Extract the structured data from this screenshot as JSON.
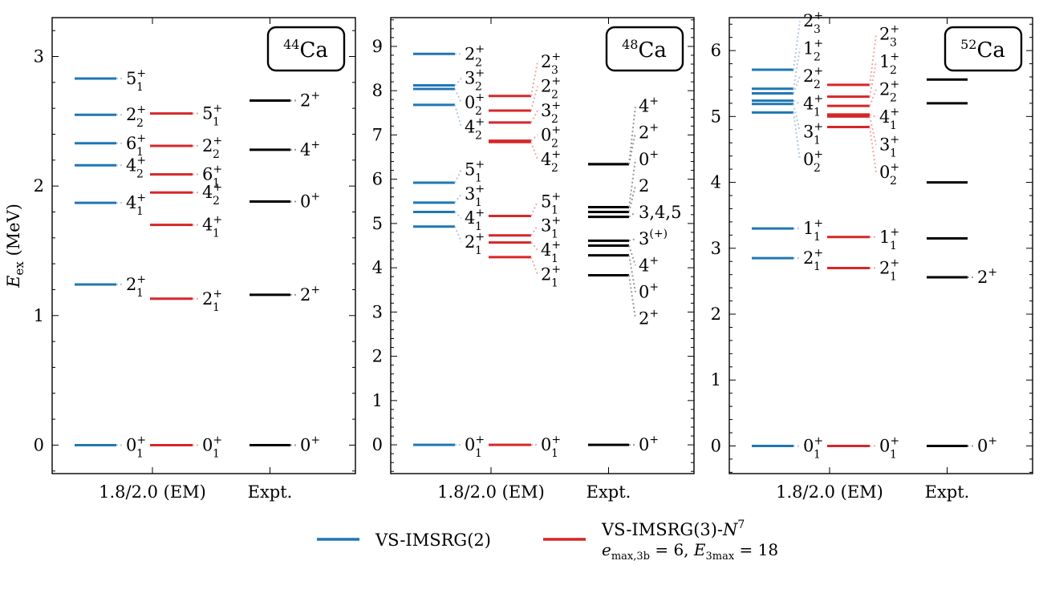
{
  "chart_data": [
    {
      "type": "level-scheme",
      "nucleus_label": {
        "mass": "44",
        "element": "Ca"
      },
      "ylabel": "E_ex (MeV)",
      "ylim": [
        -0.22,
        3.3
      ],
      "yticks": [
        0,
        1,
        2,
        3
      ],
      "column_labels": [
        "1.8/2.0 (EM)",
        "Expt."
      ],
      "series": [
        {
          "name": "VS-IMSRG(2)",
          "color": "#1f77b4",
          "levels": [
            {
              "energy": 0.0,
              "label": "0",
              "sub": "1",
              "sup": "+",
              "label_y": 0.0
            },
            {
              "energy": 1.24,
              "label": "2",
              "sub": "1",
              "sup": "+",
              "label_y": 1.24
            },
            {
              "energy": 1.87,
              "label": "4",
              "sub": "1",
              "sup": "+",
              "label_y": 1.87
            },
            {
              "energy": 2.16,
              "label": "4",
              "sub": "2",
              "sup": "+",
              "label_y": 2.16
            },
            {
              "energy": 2.33,
              "label": "6",
              "sub": "1",
              "sup": "+",
              "label_y": 2.33
            },
            {
              "energy": 2.55,
              "label": "2",
              "sub": "2",
              "sup": "+",
              "label_y": 2.55
            },
            {
              "energy": 2.83,
              "label": "5",
              "sub": "1",
              "sup": "+",
              "label_y": 2.83
            }
          ]
        },
        {
          "name": "VS-IMSRG(3)-N7",
          "color": "#d62728",
          "levels": [
            {
              "energy": 0.0,
              "label": "0",
              "sub": "1",
              "sup": "+",
              "label_y": 0.0
            },
            {
              "energy": 1.13,
              "label": "2",
              "sub": "1",
              "sup": "+",
              "label_y": 1.13
            },
            {
              "energy": 1.7,
              "label": "4",
              "sub": "1",
              "sup": "+",
              "label_y": 1.7
            },
            {
              "energy": 1.95,
              "label": "4",
              "sub": "2",
              "sup": "+",
              "label_y": 1.95
            },
            {
              "energy": 2.09,
              "label": "6",
              "sub": "1",
              "sup": "+",
              "label_y": 2.09
            },
            {
              "energy": 2.31,
              "label": "2",
              "sub": "2",
              "sup": "+",
              "label_y": 2.31
            },
            {
              "energy": 2.56,
              "label": "5",
              "sub": "1",
              "sup": "+",
              "label_y": 2.56
            }
          ]
        },
        {
          "name": "Expt.",
          "color": "#000000",
          "levels": [
            {
              "energy": 0.0,
              "label": "0",
              "sub": "",
              "sup": "+",
              "label_y": 0.0
            },
            {
              "energy": 1.16,
              "label": "2",
              "sub": "",
              "sup": "+",
              "label_y": 1.16
            },
            {
              "energy": 1.88,
              "label": "0",
              "sub": "",
              "sup": "+",
              "label_y": 1.88
            },
            {
              "energy": 2.28,
              "label": "4",
              "sub": "",
              "sup": "+",
              "label_y": 2.28
            },
            {
              "energy": 2.66,
              "label": "2",
              "sub": "",
              "sup": "+",
              "label_y": 2.66
            }
          ]
        }
      ]
    },
    {
      "type": "level-scheme",
      "nucleus_label": {
        "mass": "48",
        "element": "Ca"
      },
      "ylabel": "",
      "ylim": [
        -0.65,
        9.65
      ],
      "yticks": [
        0,
        1,
        2,
        3,
        4,
        5,
        6,
        7,
        8,
        9
      ],
      "column_labels": [
        "1.8/2.0 (EM)",
        "Expt."
      ],
      "series": [
        {
          "name": "VS-IMSRG(2)",
          "color": "#1f77b4",
          "levels": [
            {
              "energy": 0.0,
              "label": "0",
              "sub": "1",
              "sup": "+",
              "label_y": 0.0
            },
            {
              "energy": 4.93,
              "label": "2",
              "sub": "1",
              "sup": "+",
              "label_y": 4.58
            },
            {
              "energy": 5.26,
              "label": "4",
              "sub": "1",
              "sup": "+",
              "label_y": 5.12
            },
            {
              "energy": 5.47,
              "label": "3",
              "sub": "1",
              "sup": "+",
              "label_y": 5.67
            },
            {
              "energy": 5.92,
              "label": "5",
              "sub": "1",
              "sup": "+",
              "label_y": 6.22
            },
            {
              "energy": 7.68,
              "label": "4",
              "sub": "2",
              "sup": "+",
              "label_y": 7.18
            },
            {
              "energy": 8.04,
              "label": "0",
              "sub": "2",
              "sup": "+",
              "label_y": 7.73
            },
            {
              "energy": 8.12,
              "label": "3",
              "sub": "2",
              "sup": "+",
              "label_y": 8.28
            },
            {
              "energy": 8.83,
              "label": "2",
              "sub": "2",
              "sup": "+",
              "label_y": 8.83
            }
          ]
        },
        {
          "name": "VS-IMSRG(3)-N7",
          "color": "#d62728",
          "levels": [
            {
              "energy": 0.0,
              "label": "0",
              "sub": "1",
              "sup": "+",
              "label_y": 0.0
            },
            {
              "energy": 4.24,
              "label": "2",
              "sub": "1",
              "sup": "+",
              "label_y": 3.85
            },
            {
              "energy": 4.57,
              "label": "4",
              "sub": "1",
              "sup": "+",
              "label_y": 4.4
            },
            {
              "energy": 4.73,
              "label": "3",
              "sub": "1",
              "sup": "+",
              "label_y": 4.95
            },
            {
              "energy": 5.17,
              "label": "5",
              "sub": "1",
              "sup": "+",
              "label_y": 5.5
            },
            {
              "energy": 6.84,
              "label": "4",
              "sub": "2",
              "sup": "+",
              "label_y": 6.45
            },
            {
              "energy": 6.87,
              "label": "0",
              "sub": "2",
              "sup": "+",
              "label_y": 7.0
            },
            {
              "energy": 7.28,
              "label": "3",
              "sub": "2",
              "sup": "+",
              "label_y": 7.55
            },
            {
              "energy": 7.55,
              "label": "2",
              "sub": "2",
              "sup": "+",
              "label_y": 8.1
            },
            {
              "energy": 7.88,
              "label": "2",
              "sub": "3",
              "sup": "+",
              "label_y": 8.65
            }
          ]
        },
        {
          "name": "Expt.",
          "color": "#000000",
          "levels": [
            {
              "energy": 0.0,
              "label": "0",
              "sub": "",
              "sup": "+",
              "label_y": 0.0
            },
            {
              "energy": 3.83,
              "label": "2",
              "sub": "",
              "sup": "+",
              "label_y": 2.85
            },
            {
              "energy": 4.28,
              "label": "0",
              "sub": "",
              "sup": "+",
              "label_y": 3.45
            },
            {
              "energy": 4.5,
              "label": "4",
              "sub": "",
              "sup": "+",
              "label_y": 4.05
            },
            {
              "energy": 4.61,
              "label": "3",
              "sub": "",
              "sup": "(+)",
              "label_y": 4.65
            },
            {
              "energy": 5.15,
              "label": "3,4,5",
              "sub": "",
              "sup": "",
              "label_y": 5.25
            },
            {
              "energy": 5.26,
              "label": "2",
              "sub": "",
              "sup": "",
              "label_y": 5.85
            },
            {
              "energy": 5.37,
              "label": "0",
              "sub": "",
              "sup": "+",
              "label_y": 6.45
            },
            {
              "energy": 6.34,
              "label": "2",
              "sub": "",
              "sup": "+",
              "label_y": 7.05
            },
            {
              "energy": 6.34,
              "label": "4",
              "sub": "",
              "sup": "+",
              "label_y": 7.65
            }
          ]
        }
      ]
    },
    {
      "type": "level-scheme",
      "nucleus_label": {
        "mass": "52",
        "element": "Ca"
      },
      "ylabel": "",
      "ylim": [
        -0.42,
        6.5
      ],
      "yticks": [
        0,
        1,
        2,
        3,
        4,
        5,
        6
      ],
      "column_labels": [
        "1.8/2.0 (EM)",
        "Expt."
      ],
      "series": [
        {
          "name": "VS-IMSRG(2)",
          "color": "#1f77b4",
          "levels": [
            {
              "energy": 0.0,
              "label": "0",
              "sub": "1",
              "sup": "+",
              "label_y": 0.0
            },
            {
              "energy": 2.85,
              "label": "2",
              "sub": "1",
              "sup": "+",
              "label_y": 2.85
            },
            {
              "energy": 3.3,
              "label": "1",
              "sub": "1",
              "sup": "+",
              "label_y": 3.3
            },
            {
              "energy": 5.06,
              "label": "0",
              "sub": "2",
              "sup": "+",
              "label_y": 4.35
            },
            {
              "energy": 5.19,
              "label": "3",
              "sub": "1",
              "sup": "+",
              "label_y": 4.77
            },
            {
              "energy": 5.24,
              "label": "4",
              "sub": "1",
              "sup": "+",
              "label_y": 5.19
            },
            {
              "energy": 5.35,
              "label": "2",
              "sub": "2",
              "sup": "+",
              "label_y": 5.61
            },
            {
              "energy": 5.42,
              "label": "1",
              "sub": "2",
              "sup": "+",
              "label_y": 6.03
            },
            {
              "energy": 5.71,
              "label": "2",
              "sub": "3",
              "sup": "+",
              "label_y": 6.45
            }
          ]
        },
        {
          "name": "VS-IMSRG(3)-N7",
          "color": "#d62728",
          "levels": [
            {
              "energy": 0.0,
              "label": "0",
              "sub": "1",
              "sup": "+",
              "label_y": 0.0
            },
            {
              "energy": 2.7,
              "label": "2",
              "sub": "1",
              "sup": "+",
              "label_y": 2.7
            },
            {
              "energy": 3.17,
              "label": "1",
              "sub": "1",
              "sup": "+",
              "label_y": 3.17
            },
            {
              "energy": 4.84,
              "label": "0",
              "sub": "2",
              "sup": "+",
              "label_y": 4.15
            },
            {
              "energy": 5.0,
              "label": "3",
              "sub": "1",
              "sup": "+",
              "label_y": 4.57
            },
            {
              "energy": 5.03,
              "label": "4",
              "sub": "1",
              "sup": "+",
              "label_y": 4.99
            },
            {
              "energy": 5.16,
              "label": "2",
              "sub": "2",
              "sup": "+",
              "label_y": 5.41
            },
            {
              "energy": 5.3,
              "label": "1",
              "sub": "2",
              "sup": "+",
              "label_y": 5.83
            },
            {
              "energy": 5.48,
              "label": "2",
              "sub": "3",
              "sup": "+",
              "label_y": 6.25
            }
          ]
        },
        {
          "name": "Expt.",
          "color": "#000000",
          "levels": [
            {
              "energy": 0.0,
              "label": "0",
              "sub": "",
              "sup": "+",
              "label_y": 0.0
            },
            {
              "energy": 2.56,
              "label": "2",
              "sub": "",
              "sup": "+",
              "label_y": 2.56
            },
            {
              "energy": 3.15,
              "label": "",
              "sub": "",
              "sup": "",
              "label_y": 3.15
            },
            {
              "energy": 4.0,
              "label": "",
              "sub": "",
              "sup": "",
              "label_y": 4.0
            },
            {
              "energy": 5.2,
              "label": "",
              "sub": "",
              "sup": "",
              "label_y": 5.2
            },
            {
              "energy": 5.56,
              "label": "",
              "sub": "",
              "sup": "",
              "label_y": 5.56
            }
          ]
        }
      ]
    }
  ],
  "legend": {
    "items": [
      {
        "name": "VS-IMSRG(2)",
        "color": "#1f77b4",
        "label": "VS-IMSRG(2)"
      },
      {
        "name": "VS-IMSRG(3)-N7",
        "color": "#d62728",
        "label": "VS-IMSRG(3)-N",
        "label_sup": "7",
        "detail": {
          "a_base": "e",
          "a_sub": "max,3b",
          "a_val": " = 6, ",
          "b_base": "E",
          "b_sub": "3max",
          "b_val": " = 18"
        }
      }
    ]
  }
}
